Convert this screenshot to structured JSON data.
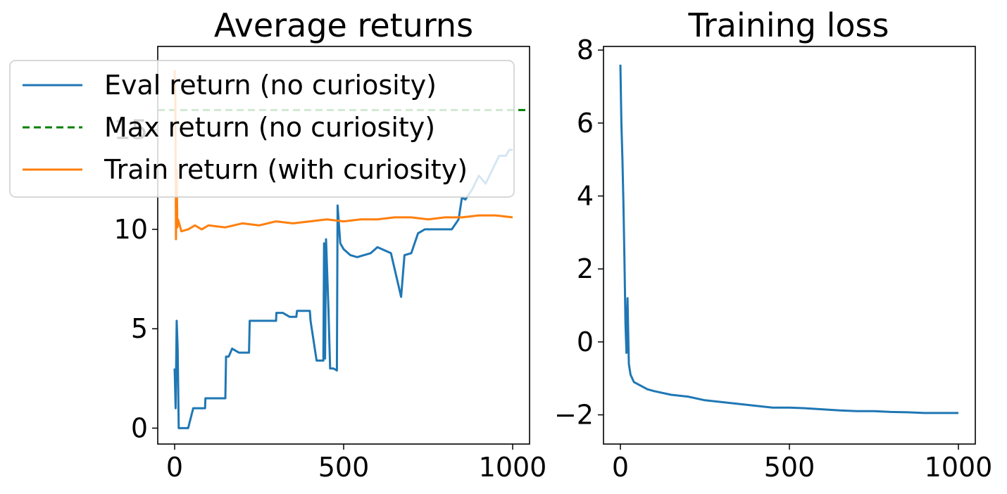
{
  "colors": {
    "eval": "#1f77b4",
    "max": "#008000",
    "train": "#ff7f0e"
  },
  "chart_data": [
    {
      "type": "line",
      "title": "Average returns",
      "xlabel": "",
      "ylabel": "",
      "xlim": [
        -50,
        1050
      ],
      "ylim": [
        -0.8,
        19.2
      ],
      "xticks": [
        0,
        500,
        1000
      ],
      "yticks": [
        0,
        5,
        10,
        15
      ],
      "xtick_labels": [
        "0",
        "500",
        "1000"
      ],
      "ytick_labels": [
        "0",
        "5",
        "10",
        "15"
      ],
      "legend": {
        "placement": "upper-left",
        "entries": [
          "Eval return (no curiosity)",
          "Max return (no curiosity)",
          "Train return (with curiosity)"
        ]
      },
      "series": [
        {
          "name": "Eval return (no curiosity)",
          "style": "solid",
          "x": [
            0,
            3,
            6,
            9,
            12,
            15,
            18,
            25,
            40,
            55,
            56,
            70,
            90,
            91,
            110,
            150,
            152,
            160,
            170,
            190,
            220,
            222,
            240,
            260,
            300,
            301,
            320,
            340,
            360,
            362,
            380,
            400,
            402,
            420,
            440,
            442,
            445,
            448,
            455,
            460,
            470,
            480,
            482,
            490,
            500,
            520,
            540,
            560,
            580,
            600,
            640,
            670,
            680,
            700,
            720,
            740,
            760,
            800,
            820,
            840,
            850,
            860,
            880,
            900,
            920,
            940,
            960,
            980,
            990,
            1000
          ],
          "y": [
            3.0,
            1.0,
            5.4,
            4.0,
            0.0,
            0.0,
            0.0,
            0.0,
            0.0,
            1.0,
            1.0,
            1.0,
            1.0,
            1.5,
            1.5,
            1.5,
            3.6,
            3.6,
            4.0,
            3.8,
            3.8,
            5.4,
            5.4,
            5.4,
            5.4,
            5.8,
            5.8,
            5.6,
            5.6,
            5.9,
            5.9,
            5.9,
            5.4,
            3.4,
            3.4,
            9.3,
            3.5,
            9.5,
            6.0,
            3.0,
            3.0,
            2.9,
            11.2,
            9.3,
            9.0,
            8.7,
            8.6,
            8.7,
            8.8,
            9.1,
            8.8,
            6.6,
            8.7,
            8.8,
            9.8,
            10.0,
            10.0,
            10.0,
            10.0,
            10.5,
            11.6,
            11.5,
            12.0,
            12.7,
            12.3,
            13.0,
            13.7,
            13.7,
            14.0,
            14.0
          ]
        },
        {
          "name": "Max return (no curiosity)",
          "style": "dashed",
          "x": [
            -50,
            1050
          ],
          "y": [
            16.0,
            16.0
          ]
        },
        {
          "name": "Train return (with curiosity)",
          "style": "solid",
          "x": [
            0,
            2,
            4,
            6,
            8,
            10,
            20,
            40,
            60,
            80,
            100,
            150,
            200,
            250,
            300,
            350,
            400,
            450,
            500,
            550,
            600,
            650,
            700,
            750,
            800,
            850,
            900,
            950,
            1000
          ],
          "y": [
            18.0,
            16.6,
            9.5,
            13.0,
            10.1,
            10.5,
            9.9,
            10.0,
            10.2,
            10.0,
            10.2,
            10.1,
            10.3,
            10.2,
            10.4,
            10.3,
            10.4,
            10.5,
            10.4,
            10.5,
            10.5,
            10.6,
            10.6,
            10.5,
            10.6,
            10.6,
            10.7,
            10.7,
            10.6
          ]
        }
      ]
    },
    {
      "type": "line",
      "title": "Training loss",
      "xlabel": "",
      "ylabel": "",
      "xlim": [
        -50,
        1050
      ],
      "ylim": [
        -2.8,
        8.1
      ],
      "xticks": [
        0,
        500,
        1000
      ],
      "yticks": [
        -2,
        0,
        2,
        4,
        6,
        8
      ],
      "xtick_labels": [
        "0",
        "500",
        "1000"
      ],
      "ytick_labels": [
        "−2",
        "0",
        "2",
        "4",
        "6",
        "8"
      ],
      "series": [
        {
          "x": [
            0,
            3,
            6,
            9,
            12,
            15,
            18,
            21,
            25,
            30,
            40,
            60,
            80,
            100,
            150,
            200,
            250,
            300,
            350,
            400,
            450,
            500,
            550,
            600,
            650,
            700,
            750,
            800,
            850,
            900,
            950,
            1000
          ],
          "y": [
            7.6,
            6.0,
            5.0,
            3.8,
            2.2,
            0.5,
            -0.3,
            1.2,
            -0.6,
            -0.9,
            -1.1,
            -1.2,
            -1.3,
            -1.35,
            -1.45,
            -1.5,
            -1.6,
            -1.65,
            -1.7,
            -1.75,
            -1.8,
            -1.8,
            -1.82,
            -1.85,
            -1.88,
            -1.9,
            -1.9,
            -1.92,
            -1.93,
            -1.95,
            -1.95,
            -1.95
          ]
        }
      ]
    }
  ]
}
